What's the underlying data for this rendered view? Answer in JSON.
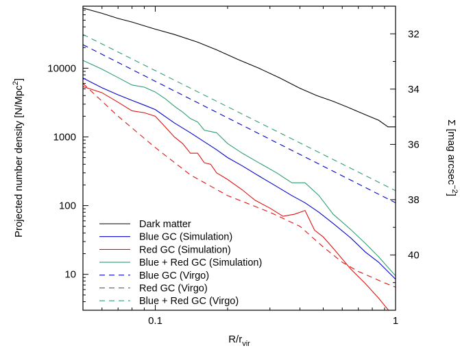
{
  "chart_data": {
    "type": "line",
    "x_scale": "log",
    "y_scale": "log",
    "xlim": [
      0.05,
      1
    ],
    "ylim": [
      3,
      80000
    ],
    "y2lim": [
      42.0,
      31.0
    ],
    "xlabel": "R/r",
    "xlabel_sub": "vir",
    "ylabel": "Projected number density [N/Mpc",
    "ylabel_sup": "2",
    "ylabel_end": "]",
    "y2label": "Σ [mag arcsec",
    "y2label_sup": "−2",
    "y2label_end": "]",
    "xticks": [
      {
        "value": 0.1,
        "label": "0.1"
      },
      {
        "value": 1,
        "label": "1"
      }
    ],
    "yticks": [
      {
        "value": 10,
        "label": "10"
      },
      {
        "value": 100,
        "label": "100"
      },
      {
        "value": 1000,
        "label": "1000"
      },
      {
        "value": 10000,
        "label": "10000"
      }
    ],
    "y2ticks": [
      {
        "value": 32,
        "label": "32"
      },
      {
        "value": 34,
        "label": "34"
      },
      {
        "value": 36,
        "label": "36"
      },
      {
        "value": 38,
        "label": "38"
      },
      {
        "value": 40,
        "label": "40"
      }
    ],
    "legend_position": "bottom-left",
    "grid": false,
    "series": [
      {
        "name": "Dark matter",
        "color": "#000000",
        "dash": "solid",
        "x": [
          0.05,
          0.06,
          0.07,
          0.08,
          0.1,
          0.12,
          0.15,
          0.18,
          0.22,
          0.27,
          0.33,
          0.4,
          0.47,
          0.55,
          0.65,
          0.75,
          0.85,
          0.93,
          1.0
        ],
        "y": [
          75000,
          63000,
          53000,
          47000,
          37000,
          31000,
          24000,
          18500,
          13500,
          10000,
          7200,
          5100,
          4000,
          3300,
          2600,
          2100,
          1750,
          1400,
          1400
        ]
      },
      {
        "name": "Blue GC (Simulation)",
        "color": "#0000cc",
        "dash": "solid",
        "x": [
          0.05,
          0.06,
          0.07,
          0.08,
          0.09,
          0.1,
          0.12,
          0.14,
          0.16,
          0.18,
          0.2,
          0.23,
          0.27,
          0.32,
          0.37,
          0.42,
          0.48,
          0.55,
          0.65,
          0.75,
          0.85,
          1.0
        ],
        "y": [
          7200,
          5200,
          4100,
          3400,
          2900,
          2500,
          1600,
          1150,
          850,
          650,
          500,
          380,
          270,
          190,
          140,
          110,
          80,
          55,
          34,
          21,
          15,
          8.5
        ]
      },
      {
        "name": "Red GC (Simulation)",
        "color": "#e01010",
        "dash": "solid",
        "x": [
          0.05,
          0.06,
          0.07,
          0.08,
          0.09,
          0.1,
          0.11,
          0.12,
          0.13,
          0.14,
          0.15,
          0.16,
          0.17,
          0.18,
          0.2,
          0.23,
          0.26,
          0.3,
          0.34,
          0.38,
          0.42,
          0.46,
          0.5,
          0.55,
          0.65,
          0.75,
          0.85,
          0.95
        ],
        "y": [
          5400,
          4400,
          3200,
          2400,
          2250,
          2000,
          1400,
          1000,
          800,
          580,
          580,
          420,
          400,
          300,
          240,
          170,
          120,
          92,
          70,
          75,
          85,
          44,
          35,
          24,
          12,
          7.3,
          4.5,
          2.8
        ]
      },
      {
        "name": "Blue + Red GC (Simulation)",
        "color": "#2e9e6e",
        "dash": "solid",
        "x": [
          0.05,
          0.06,
          0.07,
          0.08,
          0.09,
          0.1,
          0.11,
          0.12,
          0.13,
          0.14,
          0.15,
          0.16,
          0.17,
          0.18,
          0.2,
          0.23,
          0.27,
          0.32,
          0.37,
          0.42,
          0.48,
          0.55,
          0.65,
          0.75,
          0.85,
          1.0
        ],
        "y": [
          13000,
          9700,
          7300,
          5700,
          5300,
          4500,
          3600,
          2800,
          2300,
          1850,
          1650,
          1250,
          1200,
          1150,
          800,
          580,
          420,
          300,
          215,
          215,
          140,
          75,
          45,
          28,
          18,
          9.5
        ]
      },
      {
        "name": "Blue GC (Virgo)",
        "color": "#0000cc",
        "dash": "dashed",
        "x": [
          0.05,
          1.0
        ],
        "y": [
          22000,
          110
        ]
      },
      {
        "name": "Red GC (Virgo)",
        "color": "#e01010",
        "dash": "dashed",
        "x": [
          0.05,
          0.07,
          0.1,
          0.14,
          0.2,
          0.3,
          0.4,
          0.5,
          0.6,
          0.7,
          0.8,
          0.9,
          1.0
        ],
        "y": [
          6000,
          2000,
          700,
          280,
          140,
          80,
          50,
          25,
          15,
          11,
          9,
          7.5,
          6.5
        ]
      },
      {
        "name": "Blue + Red GC (Virgo)",
        "color": "#2e9e6e",
        "dash": "dashed",
        "x": [
          0.05,
          1.0
        ],
        "y": [
          31000,
          165
        ]
      }
    ]
  }
}
